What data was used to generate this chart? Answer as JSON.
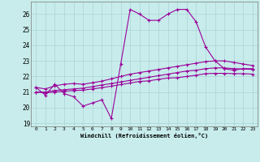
{
  "title": "",
  "xlabel": "Windchill (Refroidissement éolien,°C)",
  "ylabel": "",
  "background_color": "#c8ecec",
  "grid_color": "#aad4d4",
  "line_color": "#990099",
  "xlim": [
    -0.5,
    23.5
  ],
  "ylim": [
    18.8,
    26.8
  ],
  "yticks": [
    19,
    20,
    21,
    22,
    23,
    24,
    25,
    26
  ],
  "xticks": [
    0,
    1,
    2,
    3,
    4,
    5,
    6,
    7,
    8,
    9,
    10,
    11,
    12,
    13,
    14,
    15,
    16,
    17,
    18,
    19,
    20,
    21,
    22,
    23
  ],
  "series": [
    {
      "x": [
        0,
        1,
        2,
        3,
        4,
        5,
        6,
        7,
        8,
        9,
        10,
        11,
        12,
        13,
        14,
        15,
        16,
        17,
        18,
        19,
        20,
        21,
        22,
        23
      ],
      "y": [
        21.3,
        20.8,
        21.5,
        20.9,
        20.7,
        20.1,
        20.3,
        20.5,
        19.3,
        22.8,
        26.3,
        26.0,
        25.6,
        25.6,
        26.0,
        26.3,
        26.3,
        25.5,
        23.9,
        23.0,
        22.5,
        22.4,
        22.5,
        22.5
      ]
    },
    {
      "x": [
        0,
        1,
        2,
        3,
        4,
        5,
        6,
        7,
        8,
        9,
        10,
        11,
        12,
        13,
        14,
        15,
        16,
        17,
        18,
        19,
        20,
        21,
        22,
        23
      ],
      "y": [
        21.3,
        21.2,
        21.4,
        21.5,
        21.55,
        21.5,
        21.6,
        21.7,
        21.85,
        22.0,
        22.15,
        22.25,
        22.35,
        22.45,
        22.55,
        22.65,
        22.75,
        22.85,
        22.95,
        23.0,
        23.0,
        22.9,
        22.8,
        22.7
      ]
    },
    {
      "x": [
        0,
        1,
        2,
        3,
        4,
        5,
        6,
        7,
        8,
        9,
        10,
        11,
        12,
        13,
        14,
        15,
        16,
        17,
        18,
        19,
        20,
        21,
        22,
        23
      ],
      "y": [
        21.0,
        21.0,
        21.1,
        21.15,
        21.2,
        21.25,
        21.35,
        21.45,
        21.55,
        21.65,
        21.75,
        21.85,
        21.95,
        22.05,
        22.15,
        22.25,
        22.35,
        22.4,
        22.5,
        22.55,
        22.55,
        22.5,
        22.48,
        22.45
      ]
    },
    {
      "x": [
        0,
        1,
        2,
        3,
        4,
        5,
        6,
        7,
        8,
        9,
        10,
        11,
        12,
        13,
        14,
        15,
        16,
        17,
        18,
        19,
        20,
        21,
        22,
        23
      ],
      "y": [
        21.0,
        20.95,
        21.0,
        21.05,
        21.1,
        21.12,
        21.2,
        21.28,
        21.38,
        21.48,
        21.58,
        21.68,
        21.72,
        21.82,
        21.9,
        21.92,
        22.0,
        22.08,
        22.18,
        22.2,
        22.2,
        22.18,
        22.18,
        22.15
      ]
    }
  ]
}
